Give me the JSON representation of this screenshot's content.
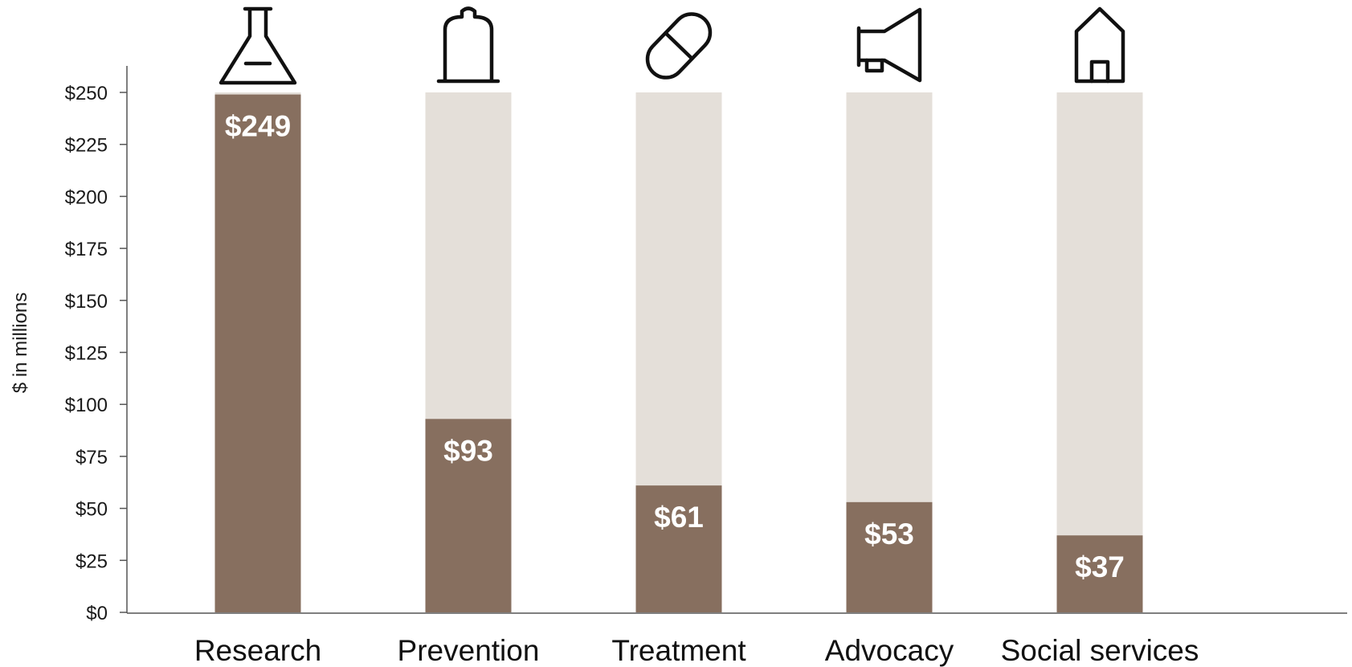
{
  "chart_data": {
    "type": "bar",
    "ylabel": "$ in millions",
    "ylim": [
      0,
      250
    ],
    "yticks": [
      0,
      25,
      50,
      75,
      100,
      125,
      150,
      175,
      200,
      225,
      250
    ],
    "ytick_labels": [
      "$0",
      "$25",
      "$50",
      "$75",
      "$100",
      "$125",
      "$150",
      "$175",
      "$200",
      "$225",
      "$250"
    ],
    "background_max": 250,
    "grid": false,
    "categories": [
      "Research",
      "Prevention",
      "Treatment",
      "Advocacy",
      "Social services"
    ],
    "values": [
      249,
      93,
      61,
      53,
      37
    ],
    "value_labels": [
      "$249",
      "$93",
      "$61",
      "$53",
      "$37"
    ],
    "icons": [
      "flask-icon",
      "condom-icon",
      "pill-icon",
      "megaphone-icon",
      "house-icon"
    ],
    "colors": {
      "bar": "#876f5f",
      "background_bar": "#e4dfd9",
      "axis": "#555555"
    }
  }
}
